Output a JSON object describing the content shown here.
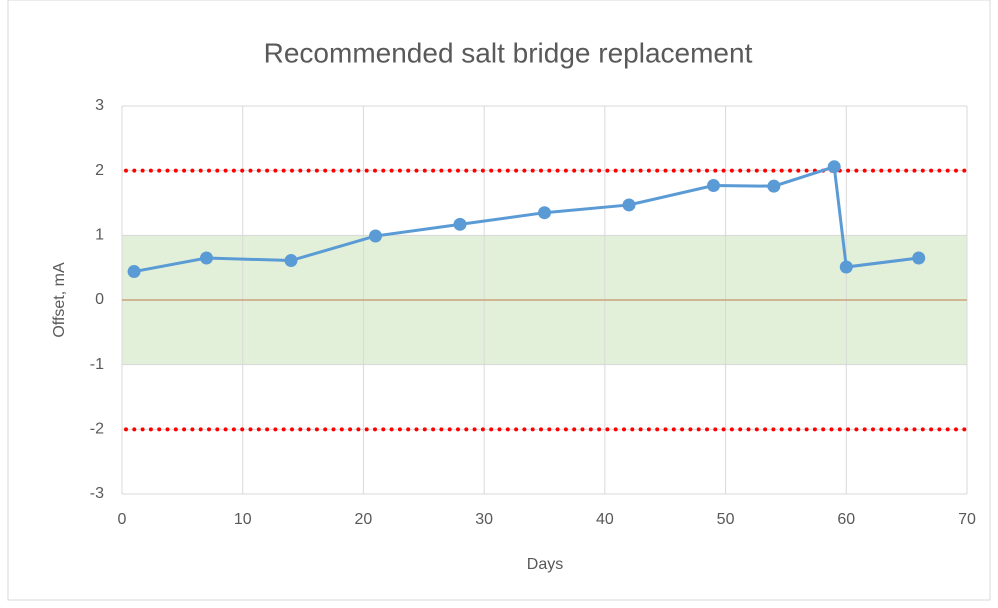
{
  "chart_data": {
    "type": "line",
    "title": "Recommended salt bridge replacement",
    "x_label": "Days",
    "y_label": "Offset, mA",
    "x": [
      1,
      7,
      14,
      21,
      28,
      35,
      42,
      49,
      54,
      59,
      60,
      66
    ],
    "series": [
      {
        "name": "Offset",
        "color": "#5b9bd5",
        "values": [
          0.44,
          0.65,
          0.61,
          0.99,
          1.17,
          1.35,
          1.47,
          1.77,
          1.76,
          2.06,
          0.51,
          0.65
        ]
      }
    ],
    "xlim": [
      0,
      70
    ],
    "xticks": [
      0,
      10,
      20,
      30,
      40,
      50,
      60,
      70
    ],
    "ylim": [
      -3,
      3
    ],
    "yticks": [
      -3,
      -2,
      -1,
      0,
      1,
      2,
      3
    ],
    "band": [
      -1,
      1
    ],
    "band_color": "#e2f0d9",
    "limit_lines": [
      2,
      -2
    ],
    "limit_color": "#ff0000",
    "zero_line": 0,
    "zero_color": "#c9a27a",
    "grid": true
  }
}
